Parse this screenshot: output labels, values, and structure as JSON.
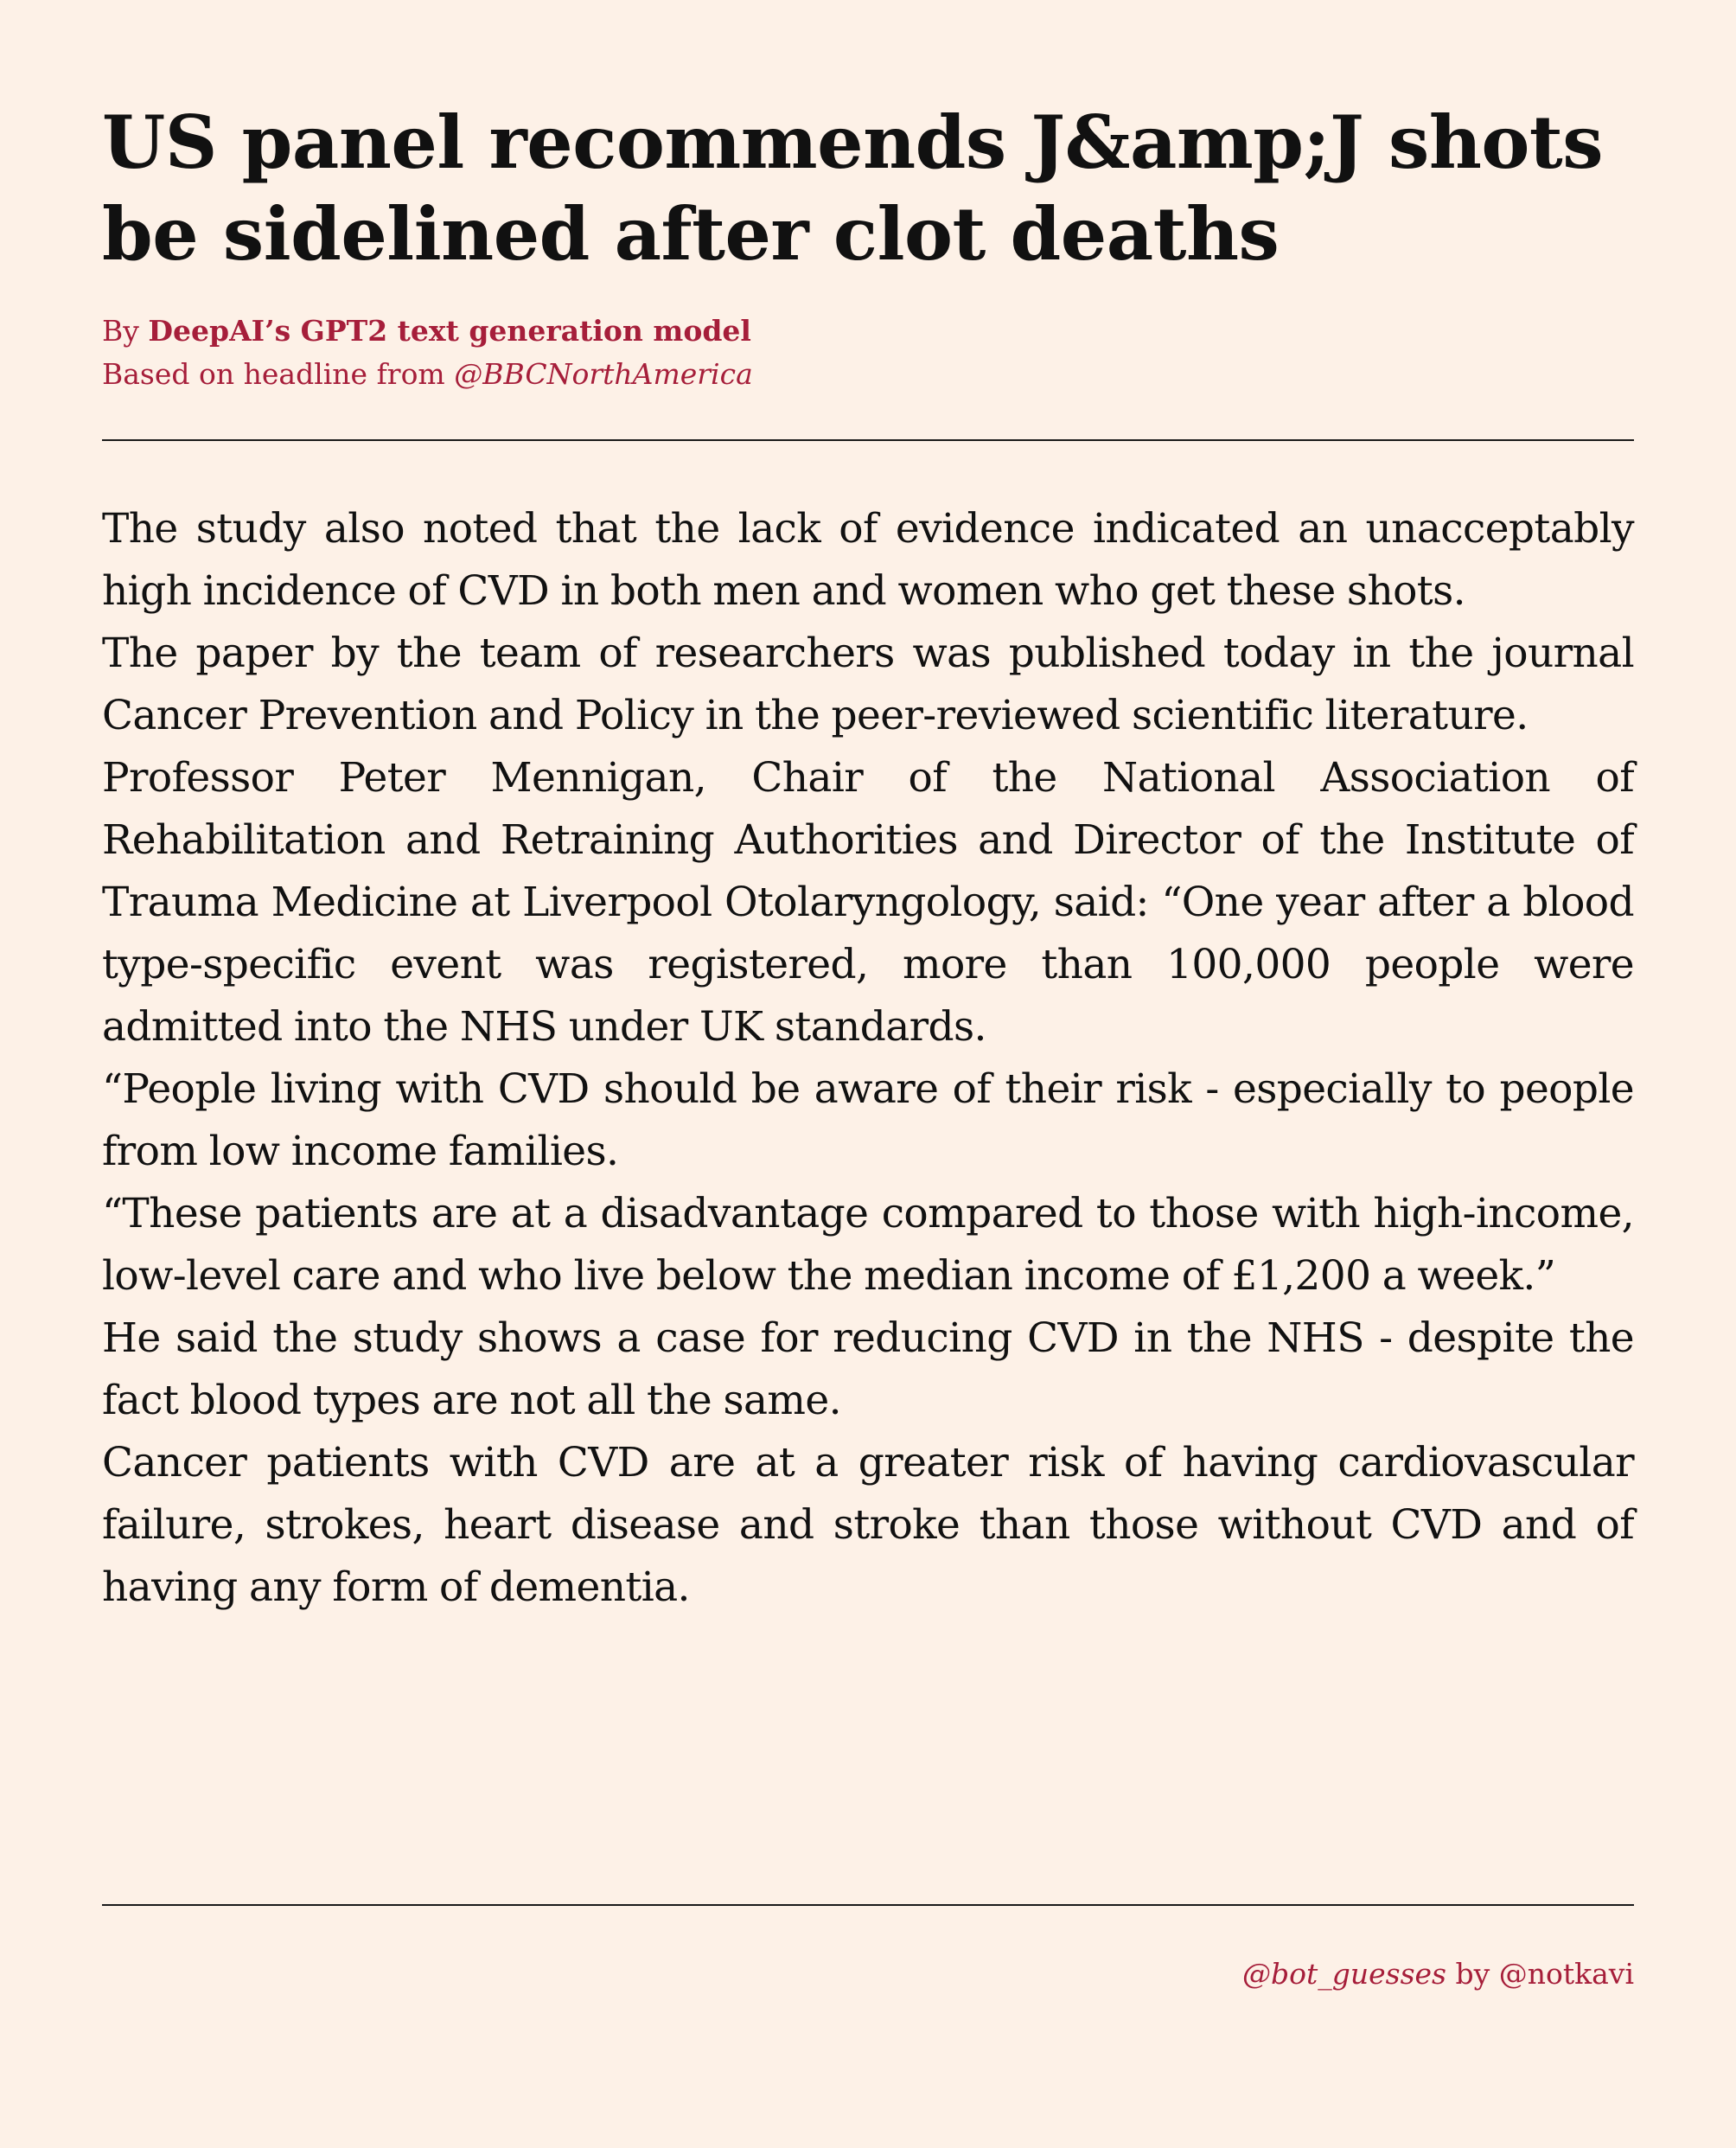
{
  "headline": "US panel recommends J&amp;J shots be sidelined after clot deaths",
  "byline": {
    "prefix": "By ",
    "author": "DeepAI’s GPT2 text generation model",
    "source_prefix": "Based on headline from ",
    "source_handle": "@BBCNorthAmerica"
  },
  "article": {
    "paragraphs": [
      "The study also noted that the lack of evidence indicated an unacceptably high incidence of CVD in both men and women who get these shots.",
      "The paper by the team of researchers was published today in the journal Cancer Prevention and Policy in the peer-reviewed scientific literature.",
      "Professor Peter Mennigan, Chair of the National Association of Rehabilitation and Retraining Authorities and Director of the Institute of Trauma Medicine at Liverpool Otolaryngology, said: “One year after a blood type-specific event was registered, more than 100,000 people were admitted into the NHS under UK standards.",
      "“People living with CVD should be aware of their risk - especially to people from low income families.",
      "“These patients are at a disadvantage compared to those with high-income, low-level care and who live below the median income of £1,200 a week.”",
      "He said the study shows a case for reducing CVD in the NHS - despite the fact blood types are not all the same.",
      "Cancer patients with CVD are at a greater risk of having cardiovascular failure, strokes, heart disease and stroke than those without CVD and of having any form of dementia."
    ]
  },
  "credit": {
    "bot_handle": "@bot_guesses",
    "by_text": " by @notkavi"
  },
  "colors": {
    "background": "#fdf1e7",
    "accent": "#a61e3a",
    "text": "#111111"
  }
}
